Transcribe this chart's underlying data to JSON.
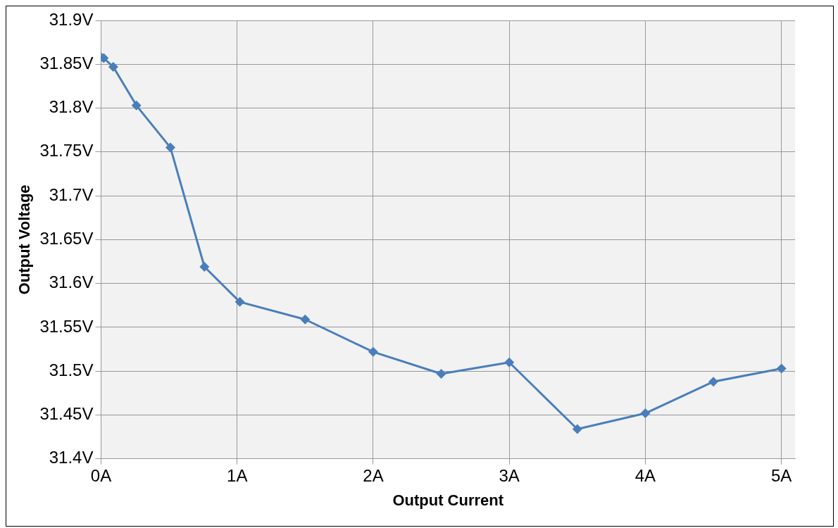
{
  "chart_data": {
    "type": "line",
    "xlabel": "Output Current",
    "ylabel": "Output Voltage",
    "x": [
      0,
      0.02,
      0.09,
      0.26,
      0.51,
      0.76,
      1.02,
      1.5,
      2,
      2.5,
      3,
      3.5,
      4,
      4.5,
      5
    ],
    "series": [
      {
        "color": "#4a7ebb",
        "values": [
          31.858,
          31.857,
          31.847,
          31.803,
          31.755,
          31.619,
          31.579,
          31.559,
          31.522,
          31.497,
          31.51,
          31.434,
          31.452,
          31.488,
          31.503
        ]
      }
    ],
    "xlim": [
      0,
      5.1
    ],
    "xticks": [
      {
        "value": 0,
        "label": "0A"
      },
      {
        "value": 1,
        "label": "1A"
      },
      {
        "value": 2,
        "label": "2A"
      },
      {
        "value": 3,
        "label": "3A"
      },
      {
        "value": 4,
        "label": "4A"
      },
      {
        "value": 5,
        "label": "5A"
      }
    ],
    "ylim": [
      31.4,
      31.9
    ],
    "yticks": [
      {
        "value": 31.4,
        "label": "31.4V"
      },
      {
        "value": 31.45,
        "label": "31.45V"
      },
      {
        "value": 31.5,
        "label": "31.5V"
      },
      {
        "value": 31.55,
        "label": "31.55V"
      },
      {
        "value": 31.6,
        "label": "31.6V"
      },
      {
        "value": 31.65,
        "label": "31.65V"
      },
      {
        "value": 31.7,
        "label": "31.7V"
      },
      {
        "value": 31.75,
        "label": "31.75V"
      },
      {
        "value": 31.8,
        "label": "31.8V"
      },
      {
        "value": 31.85,
        "label": "31.85V"
      },
      {
        "value": 31.9,
        "label": "31.9V"
      }
    ],
    "grid": true,
    "legend": false,
    "marker": "diamond",
    "line_style": "solid"
  }
}
